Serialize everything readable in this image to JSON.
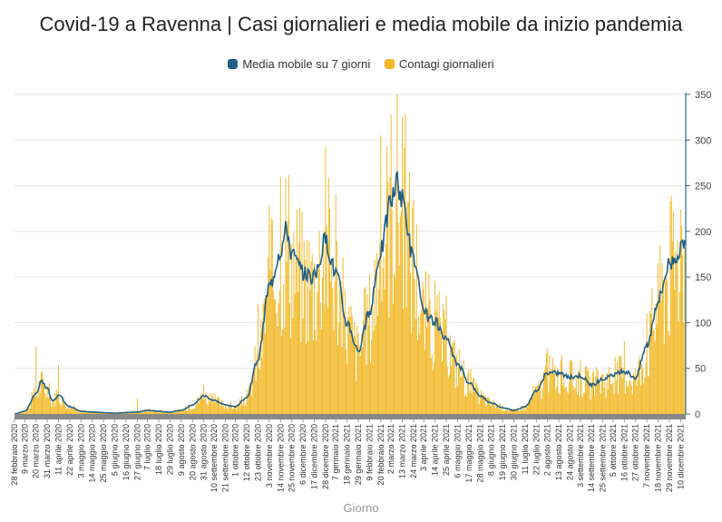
{
  "chart_data": {
    "type": "bar",
    "title": "Covid-19 a Ravenna | Casi giornalieri e media mobile da inizio pandemia",
    "xlabel": "Giorno",
    "ylabel": "",
    "ylim": [
      0,
      350
    ],
    "y_ticks": [
      "0",
      "50",
      "100",
      "150",
      "200",
      "250",
      "300",
      "350"
    ],
    "grid": true,
    "legend_position": "top-center",
    "colors": {
      "moving_average": "#1f5f86",
      "daily_cases": "#f2b927",
      "axis": "#2a6b8a",
      "grid": "#e6e6e6",
      "baseline_band": "#888888"
    },
    "legend": [
      {
        "label": "Media mobile su 7 giorni",
        "color": "#1f5f86"
      },
      {
        "label": "Contagi giornalieri",
        "color": "#f2b927"
      }
    ],
    "x_tick_labels": [
      "28 febbraio 2020",
      "9 marzo 2020",
      "20 marzo 2020",
      "31 marzo 2020",
      "11 aprile 2020",
      "22 aprile 2020",
      "3 maggio 2020",
      "14 maggio 2020",
      "25 maggio 2020",
      "5 giugno 2020",
      "16 giugno 2020",
      "27 giugno 2020",
      "7 luglio 2020",
      "18 luglio 2020",
      "29 luglio 2020",
      "9 agosto 2020",
      "20 agosto 2020",
      "31 agosto 2020",
      "10 settembre 2020",
      "21 settembre 2020",
      "1 ottobre 2020",
      "12 ottobre 2020",
      "23 ottobre 2020",
      "3 novembre 2020",
      "14 novembre 2020",
      "25 novembre 2020",
      "6 dicembre 2020",
      "17 dicembre 2020",
      "28 dicembre 2020",
      "7 gennaio 2021",
      "18 gennaio 2021",
      "29 gennaio 2021",
      "9 febbraio 2021",
      "20 febbraio 2021",
      "2 marzo 2021",
      "13 marzo 2021",
      "24 marzo 2021",
      "3 aprile 2021",
      "14 aprile 2021",
      "25 aprile 2021",
      "6 maggio 2021",
      "17 maggio 2021",
      "28 maggio 2021",
      "8 giugno 2021",
      "19 giugno 2021",
      "30 giugno 2021",
      "11 luglio 2021",
      "22 luglio 2021",
      "2 agosto 2021",
      "13 agosto 2021",
      "24 agosto 2021",
      "3 settembre 2021",
      "14 settembre 2021",
      "25 settembre 2021",
      "5 ottobre 2021",
      "16 ottobre 2021",
      "27 ottobre 2021",
      "7 novembre 2021",
      "18 novembre 2021",
      "29 novembre 2021",
      "10 dicembre 2021"
    ],
    "series": [
      {
        "name": "Media mobile su 7 giorni",
        "kind": "line",
        "keypoints": [
          {
            "x": "28 febbraio 2020",
            "y": 0
          },
          {
            "x": "9 marzo 2020",
            "y": 3
          },
          {
            "x": "20 marzo 2020",
            "y": 22
          },
          {
            "x": "25 marzo 2020",
            "y": 35
          },
          {
            "x": "31 marzo 2020",
            "y": 28
          },
          {
            "x": "5 aprile 2020",
            "y": 14
          },
          {
            "x": "11 aprile 2020",
            "y": 20
          },
          {
            "x": "22 aprile 2020",
            "y": 8
          },
          {
            "x": "3 maggio 2020",
            "y": 3
          },
          {
            "x": "14 maggio 2020",
            "y": 2
          },
          {
            "x": "5 giugno 2020",
            "y": 1
          },
          {
            "x": "27 giugno 2020",
            "y": 2
          },
          {
            "x": "7 luglio 2020",
            "y": 4
          },
          {
            "x": "18 luglio 2020",
            "y": 3
          },
          {
            "x": "29 luglio 2020",
            "y": 2
          },
          {
            "x": "9 agosto 2020",
            "y": 4
          },
          {
            "x": "20 agosto 2020",
            "y": 10
          },
          {
            "x": "31 agosto 2020",
            "y": 20
          },
          {
            "x": "10 settembre 2020",
            "y": 15
          },
          {
            "x": "21 settembre 2020",
            "y": 10
          },
          {
            "x": "1 ottobre 2020",
            "y": 8
          },
          {
            "x": "12 ottobre 2020",
            "y": 18
          },
          {
            "x": "23 ottobre 2020",
            "y": 60
          },
          {
            "x": "3 novembre 2020",
            "y": 140
          },
          {
            "x": "14 novembre 2020",
            "y": 180
          },
          {
            "x": "20 novembre 2020",
            "y": 203
          },
          {
            "x": "25 novembre 2020",
            "y": 175
          },
          {
            "x": "6 dicembre 2020",
            "y": 155
          },
          {
            "x": "17 dicembre 2020",
            "y": 150
          },
          {
            "x": "28 dicembre 2020",
            "y": 190
          },
          {
            "x": "7 gennaio 2021",
            "y": 155
          },
          {
            "x": "18 gennaio 2021",
            "y": 100
          },
          {
            "x": "29 gennaio 2021",
            "y": 70
          },
          {
            "x": "9 febbraio 2021",
            "y": 110
          },
          {
            "x": "20 febbraio 2021",
            "y": 180
          },
          {
            "x": "2 marzo 2021",
            "y": 235
          },
          {
            "x": "8 marzo 2021",
            "y": 252
          },
          {
            "x": "13 marzo 2021",
            "y": 235
          },
          {
            "x": "24 marzo 2021",
            "y": 170
          },
          {
            "x": "3 aprile 2021",
            "y": 110
          },
          {
            "x": "14 aprile 2021",
            "y": 100
          },
          {
            "x": "25 aprile 2021",
            "y": 80
          },
          {
            "x": "6 maggio 2021",
            "y": 55
          },
          {
            "x": "17 maggio 2021",
            "y": 35
          },
          {
            "x": "28 maggio 2021",
            "y": 20
          },
          {
            "x": "8 giugno 2021",
            "y": 12
          },
          {
            "x": "19 giugno 2021",
            "y": 7
          },
          {
            "x": "30 giugno 2021",
            "y": 4
          },
          {
            "x": "11 luglio 2021",
            "y": 8
          },
          {
            "x": "22 luglio 2021",
            "y": 25
          },
          {
            "x": "2 agosto 2021",
            "y": 45
          },
          {
            "x": "13 agosto 2021",
            "y": 45
          },
          {
            "x": "24 agosto 2021",
            "y": 40
          },
          {
            "x": "3 settembre 2021",
            "y": 42
          },
          {
            "x": "14 settembre 2021",
            "y": 32
          },
          {
            "x": "25 settembre 2021",
            "y": 38
          },
          {
            "x": "5 ottobre 2021",
            "y": 42
          },
          {
            "x": "16 ottobre 2021",
            "y": 47
          },
          {
            "x": "27 ottobre 2021",
            "y": 40
          },
          {
            "x": "7 novembre 2021",
            "y": 75
          },
          {
            "x": "18 novembre 2021",
            "y": 125
          },
          {
            "x": "29 novembre 2021",
            "y": 165
          },
          {
            "x": "10 dicembre 2021",
            "y": 180
          }
        ]
      },
      {
        "name": "Contagi giornalieri",
        "kind": "bar",
        "peaks": [
          {
            "x": "20 marzo 2020",
            "y": 73
          },
          {
            "x": "11 aprile 2020",
            "y": 53
          },
          {
            "x": "27 giugno 2020",
            "y": 17
          },
          {
            "x": "31 agosto 2020",
            "y": 32
          },
          {
            "x": "23 ottobre 2020",
            "y": 120
          },
          {
            "x": "3 novembre 2020",
            "y": 228
          },
          {
            "x": "14 novembre 2020",
            "y": 260
          },
          {
            "x": "28 dicembre 2020",
            "y": 292
          },
          {
            "x": "7 gennaio 2021",
            "y": 240
          },
          {
            "x": "20 febbraio 2021",
            "y": 305
          },
          {
            "x": "2 marzo 2021",
            "y": 328
          },
          {
            "x": "13 marzo 2021",
            "y": 325
          },
          {
            "x": "24 marzo 2021",
            "y": 235
          },
          {
            "x": "25 aprile 2021",
            "y": 130
          },
          {
            "x": "2 agosto 2021",
            "y": 72
          },
          {
            "x": "16 ottobre 2021",
            "y": 80
          },
          {
            "x": "7 novembre 2021",
            "y": 110
          },
          {
            "x": "18 novembre 2021",
            "y": 165
          },
          {
            "x": "10 dicembre 2021",
            "y": 224
          }
        ]
      }
    ]
  }
}
